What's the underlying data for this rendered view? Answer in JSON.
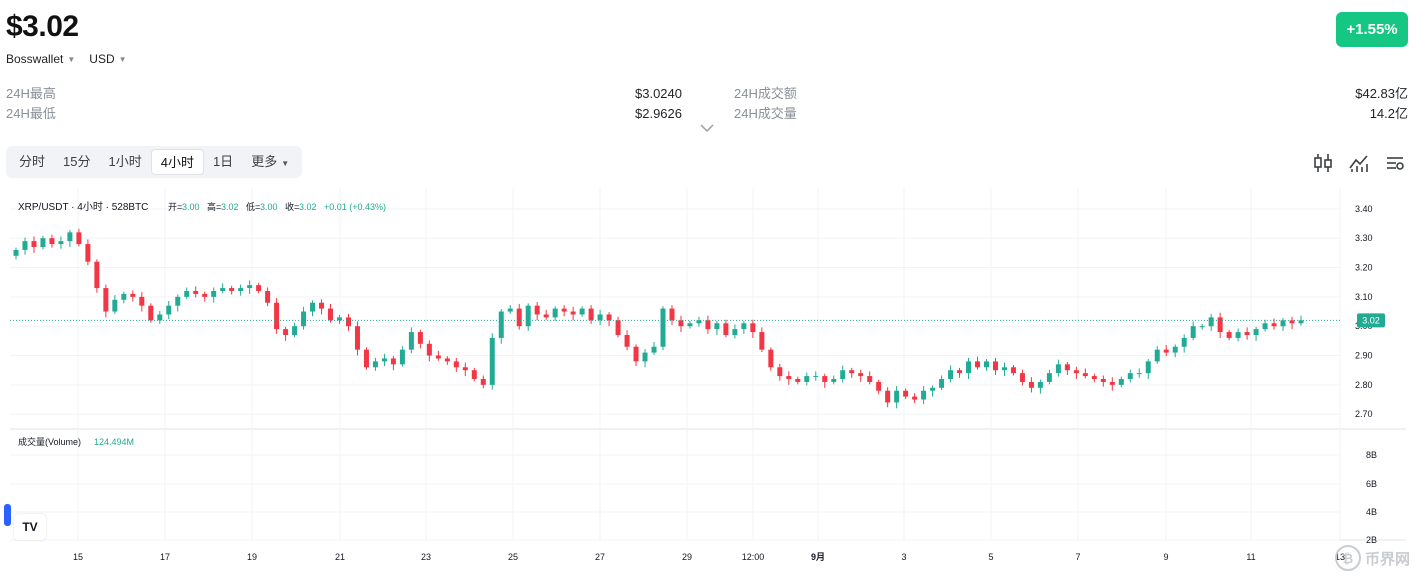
{
  "header": {
    "price": "$3.02",
    "change": "+1.55%",
    "wallet": "Bosswallet",
    "currency": "USD"
  },
  "stats": {
    "left": [
      {
        "label": "24H最高",
        "value": "$3.0240"
      },
      {
        "label": "24H最低",
        "value": "$2.9626"
      }
    ],
    "right": [
      {
        "label": "24H成交额",
        "value": "$42.83亿"
      },
      {
        "label": "24H成交量",
        "value": "14.2亿"
      }
    ]
  },
  "tabs": [
    {
      "label": "分时",
      "active": false
    },
    {
      "label": "15分",
      "active": false
    },
    {
      "label": "1小时",
      "active": false
    },
    {
      "label": "4小时",
      "active": true
    },
    {
      "label": "1日",
      "active": false
    },
    {
      "label": "更多",
      "active": false
    }
  ],
  "tools": [
    "candlestick-icon",
    "indicator-icon",
    "settings-icon"
  ],
  "colors": {
    "up": "#22ab94",
    "down": "#f23645",
    "accent": "#16c784"
  },
  "chart_data": {
    "type": "candlestick",
    "legend": {
      "symbol": "XRP/USDT · 4小时 · 528BTC",
      "open_label": "开=",
      "open": "3.00",
      "high_label": "高=",
      "high": "3.02",
      "low_label": "低=",
      "low": "3.00",
      "close_label": "收=",
      "close": "3.02",
      "change": "+0.01 (+0.43%)"
    },
    "price_axis": [
      "3.40",
      "3.30",
      "3.20",
      "3.10",
      "3.00",
      "2.90",
      "2.80",
      "2.70"
    ],
    "ylim": [
      2.67,
      3.42
    ],
    "last_price": "3.02",
    "x_labels": [
      "15",
      "17",
      "19",
      "21",
      "23",
      "25",
      "27",
      "29",
      "12:00",
      "9月",
      "3",
      "5",
      "7",
      "9",
      "11",
      "13"
    ],
    "closes": [
      3.26,
      3.29,
      3.27,
      3.3,
      3.28,
      3.29,
      3.32,
      3.28,
      3.22,
      3.13,
      3.05,
      3.09,
      3.11,
      3.1,
      3.07,
      3.02,
      3.04,
      3.07,
      3.1,
      3.12,
      3.11,
      3.1,
      3.12,
      3.13,
      3.12,
      3.13,
      3.14,
      3.12,
      3.08,
      2.99,
      2.97,
      3.0,
      3.05,
      3.08,
      3.06,
      3.02,
      3.03,
      3.0,
      2.92,
      2.86,
      2.88,
      2.89,
      2.87,
      2.92,
      2.98,
      2.94,
      2.9,
      2.89,
      2.88,
      2.86,
      2.85,
      2.82,
      2.8,
      2.96,
      3.05,
      3.06,
      3.0,
      3.07,
      3.04,
      3.03,
      3.06,
      3.05,
      3.04,
      3.06,
      3.02,
      3.04,
      3.02,
      2.97,
      2.93,
      2.88,
      2.91,
      2.93,
      3.06,
      3.02,
      3.0,
      3.01,
      3.02,
      2.99,
      3.01,
      2.97,
      2.99,
      3.01,
      2.98,
      2.92,
      2.86,
      2.83,
      2.82,
      2.81,
      2.83,
      2.83,
      2.81,
      2.82,
      2.85,
      2.84,
      2.83,
      2.81,
      2.78,
      2.74,
      2.78,
      2.76,
      2.75,
      2.78,
      2.79,
      2.82,
      2.85,
      2.84,
      2.88,
      2.86,
      2.88,
      2.85,
      2.86,
      2.84,
      2.81,
      2.79,
      2.81,
      2.84,
      2.87,
      2.85,
      2.84,
      2.83,
      2.82,
      2.81,
      2.8,
      2.82,
      2.84,
      2.84,
      2.88,
      2.92,
      2.91,
      2.93,
      2.96,
      3.0,
      3.0,
      3.03,
      2.98,
      2.96,
      2.98,
      2.97,
      2.99,
      3.01,
      3.0,
      3.02,
      3.01,
      3.02
    ],
    "volume_label": "成交量(Volume)",
    "volume_value": "124.494M",
    "volume_axis": [
      "8B",
      "6B",
      "4B",
      "2B"
    ]
  },
  "watermark": "币界网"
}
